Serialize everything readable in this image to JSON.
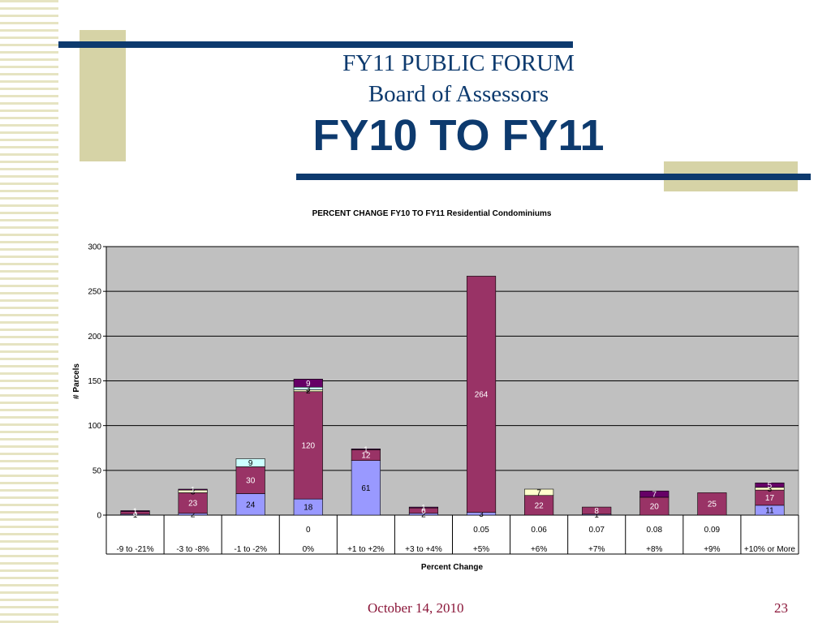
{
  "slide": {
    "title_line1": "FY11 PUBLIC FORUM",
    "title_line2": "Board of Assessors",
    "title_line3": "FY10 TO FY11",
    "footer_date": "October 14, 2010",
    "page_number": "23"
  },
  "colors": {
    "accent_blue": "#0d3a6e",
    "accent_tan": "#d6d3a6",
    "footer": "#8a1538",
    "plot_bg": "#c0c0c0"
  },
  "chart_data": {
    "type": "bar",
    "stacked": true,
    "title": "PERCENT CHANGE FY10 TO FY11 Residential Condominiums",
    "xlabel": "Percent Change",
    "ylabel": "# Parcels",
    "ylim": [
      0,
      300
    ],
    "yticks": [
      "0",
      "50",
      "100",
      "150",
      "200",
      "250",
      "300"
    ],
    "grid": true,
    "categories": [
      "-9 to -21%",
      "-3 to -8%",
      "-1 to -2%",
      "0%",
      "+1 to +2%",
      "+3 to +4%",
      "+5%",
      "+6%",
      "+7%",
      "+8%",
      "+9%",
      "+10% or More"
    ],
    "category_values": [
      "",
      "",
      "",
      "0",
      "",
      "",
      "0.05",
      "0.06",
      "0.07",
      "0.08",
      "0.09",
      ""
    ],
    "series": [
      {
        "color": "#9999ff",
        "values": [
          1,
          2,
          24,
          18,
          61,
          2,
          3,
          0,
          1,
          0,
          0,
          11
        ]
      },
      {
        "color": "#993366",
        "values": [
          3,
          23,
          30,
          120,
          12,
          6,
          264,
          22,
          8,
          20,
          25,
          17
        ]
      },
      {
        "color": "#ffffcc",
        "values": [
          0,
          3,
          0,
          2,
          0,
          0,
          0,
          7,
          0,
          0,
          0,
          3
        ]
      },
      {
        "color": "#ccffff",
        "values": [
          0,
          0,
          9,
          3,
          0,
          0,
          0,
          0,
          0,
          0,
          0,
          0
        ]
      },
      {
        "color": "#660066",
        "values": [
          1,
          1,
          0,
          9,
          1,
          1,
          0,
          0,
          0,
          7,
          0,
          5
        ]
      }
    ]
  }
}
